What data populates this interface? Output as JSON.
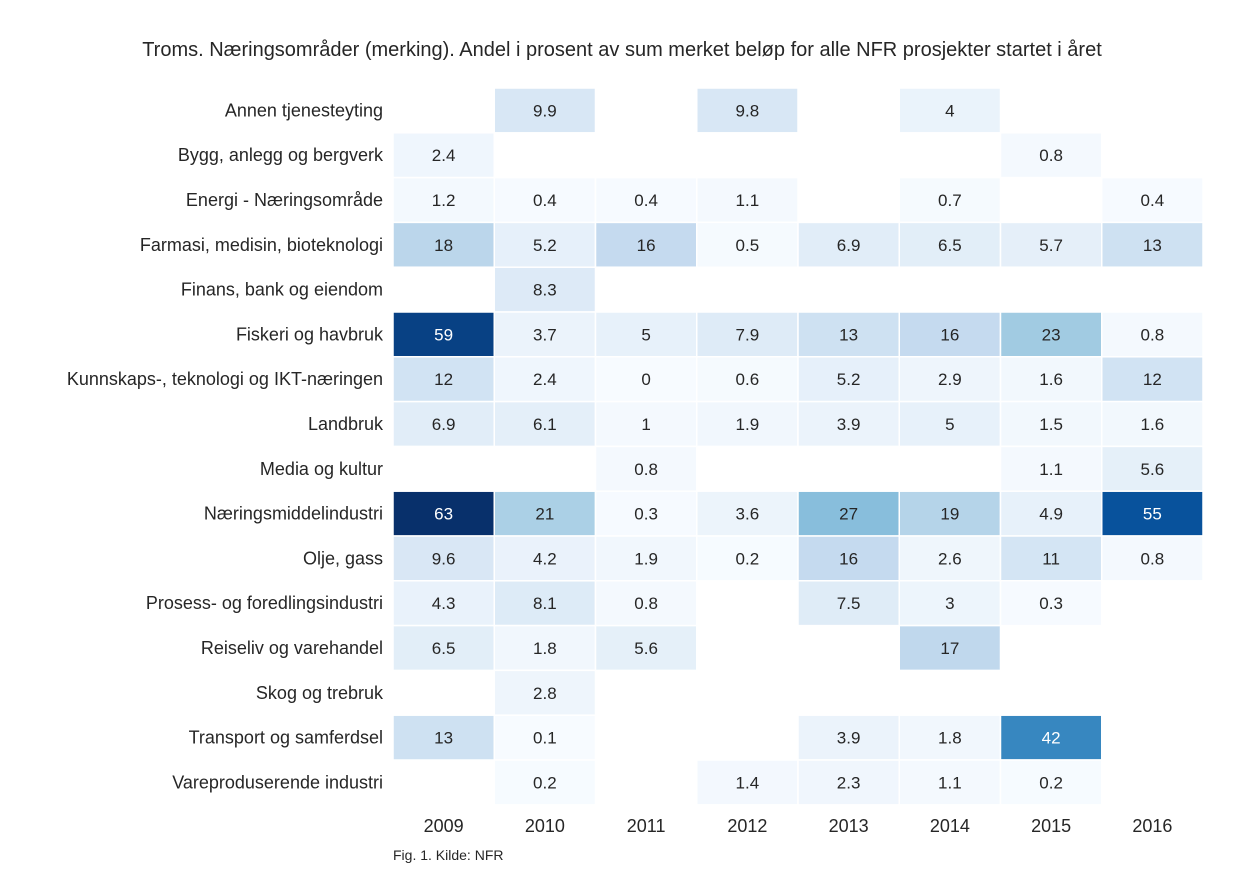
{
  "chart_data": {
    "type": "heatmap",
    "title": "Troms. Næringsområder (merking). Andel i prosent av sum merket beløp for alle NFR prosjekter startet i året",
    "caption": "Fig. 1. Kilde: NFR",
    "x": [
      "2009",
      "2010",
      "2011",
      "2012",
      "2013",
      "2014",
      "2015",
      "2016"
    ],
    "y": [
      "Annen tjenesteyting",
      "Bygg, anlegg og bergverk",
      "Energi - Næringsområde",
      "Farmasi, medisin, bioteknologi",
      "Finans, bank og eiendom",
      "Fiskeri og havbruk",
      "Kunnskaps-, teknologi og IKT-næringen",
      "Landbruk",
      "Media og kultur",
      "Næringsmiddelindustri",
      "Olje, gass",
      "Prosess- og foredlingsindustri",
      "Reiseliv og varehandel",
      "Skog og trebruk",
      "Transport og samferdsel",
      "Vareproduserende industri"
    ],
    "values": [
      [
        null,
        9.9,
        null,
        9.8,
        null,
        4,
        null,
        null
      ],
      [
        2.4,
        null,
        null,
        null,
        null,
        null,
        0.8,
        null
      ],
      [
        1.2,
        0.4,
        0.4,
        1.1,
        null,
        0.7,
        null,
        0.4
      ],
      [
        18,
        5.2,
        16,
        0.5,
        6.9,
        6.5,
        5.7,
        13
      ],
      [
        null,
        8.3,
        null,
        null,
        null,
        null,
        null,
        null
      ],
      [
        59,
        3.7,
        5,
        7.9,
        13,
        16,
        23,
        0.8
      ],
      [
        12,
        2.4,
        0,
        0.6,
        5.2,
        2.9,
        1.6,
        12
      ],
      [
        6.9,
        6.1,
        1,
        1.9,
        3.9,
        5,
        1.5,
        1.6
      ],
      [
        null,
        null,
        0.8,
        null,
        null,
        null,
        1.1,
        5.6
      ],
      [
        63,
        21,
        0.3,
        3.6,
        27,
        19,
        4.9,
        55
      ],
      [
        9.6,
        4.2,
        1.9,
        0.2,
        16,
        2.6,
        11,
        0.8
      ],
      [
        4.3,
        8.1,
        0.8,
        null,
        7.5,
        3,
        0.3,
        null
      ],
      [
        6.5,
        1.8,
        5.6,
        null,
        null,
        17,
        null,
        null
      ],
      [
        null,
        2.8,
        null,
        null,
        null,
        null,
        null,
        null
      ],
      [
        13,
        0.1,
        null,
        null,
        3.9,
        1.8,
        42,
        null
      ],
      [
        null,
        0.2,
        null,
        1.4,
        2.3,
        1.1,
        0.2,
        null
      ]
    ],
    "value_range": [
      0,
      63
    ],
    "colormap": "Blues",
    "grid": false,
    "legend": "none"
  }
}
